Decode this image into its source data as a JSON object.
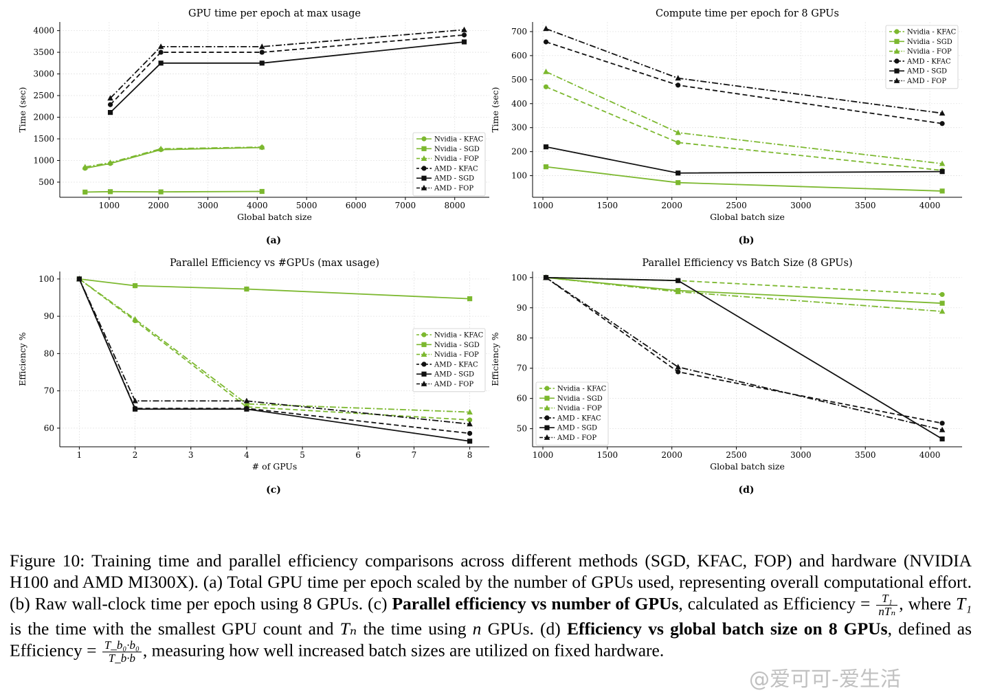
{
  "colors": {
    "nvidia": "#7cb82f",
    "amd": "#111111",
    "grid": "#e3e3e3"
  },
  "chart_data": [
    {
      "id": "a",
      "type": "line",
      "title": "GPU time per epoch at max usage",
      "xlabel": "Global batch size",
      "ylabel": "Time (sec)",
      "sublabel": "(a)",
      "xlim": [
        0,
        8700
      ],
      "ylim": [
        150,
        4200
      ],
      "xticks": [
        1000,
        2000,
        3000,
        4000,
        5000,
        6000,
        7000,
        8000
      ],
      "yticks": [
        500,
        1000,
        1500,
        2000,
        2500,
        3000,
        3500,
        4000
      ],
      "legend_pos": "lower-right",
      "series": [
        {
          "name": "Nvidia - KFAC",
          "color": "nvidia",
          "dash": "solid",
          "marker": "circle",
          "x": [
            512,
            1024,
            2048,
            4096
          ],
          "y": [
            820,
            930,
            1250,
            1300
          ]
        },
        {
          "name": "Nvidia - SGD",
          "color": "nvidia",
          "dash": "solid",
          "marker": "square",
          "x": [
            512,
            1024,
            2048,
            4096
          ],
          "y": [
            270,
            280,
            275,
            285
          ]
        },
        {
          "name": "Nvidia - FOP",
          "color": "nvidia",
          "dash": "dashdot",
          "marker": "triangle",
          "x": [
            512,
            1024,
            2048,
            4096
          ],
          "y": [
            850,
            950,
            1270,
            1310
          ]
        },
        {
          "name": "AMD - KFAC",
          "color": "amd",
          "dash": "dashed",
          "marker": "circle",
          "x": [
            1024,
            2048,
            4096,
            8192
          ],
          "y": [
            2290,
            3500,
            3500,
            3900
          ]
        },
        {
          "name": "AMD - SGD",
          "color": "amd",
          "dash": "solid",
          "marker": "square",
          "x": [
            1024,
            2048,
            4096,
            8192
          ],
          "y": [
            2110,
            3250,
            3250,
            3740
          ]
        },
        {
          "name": "AMD - FOP",
          "color": "amd",
          "dash": "dashdot",
          "marker": "triangle",
          "x": [
            1024,
            2048,
            4096,
            8192
          ],
          "y": [
            2440,
            3630,
            3630,
            4020
          ]
        }
      ]
    },
    {
      "id": "b",
      "type": "line",
      "title": "Compute time per epoch for 8 GPUs",
      "xlabel": "Global batch size",
      "ylabel": "Time (sec)",
      "sublabel": "(b)",
      "xlim": [
        920,
        4250
      ],
      "ylim": [
        10,
        740
      ],
      "xticks": [
        1000,
        1500,
        2000,
        2500,
        3000,
        3500,
        4000
      ],
      "yticks": [
        100,
        200,
        300,
        400,
        500,
        600,
        700
      ],
      "legend_pos": "top-right",
      "series": [
        {
          "name": "Nvidia - KFAC",
          "color": "nvidia",
          "dash": "dashed",
          "marker": "circle",
          "x": [
            1024,
            2048,
            4096
          ],
          "y": [
            470,
            238,
            122
          ]
        },
        {
          "name": "Nvidia - SGD",
          "color": "nvidia",
          "dash": "solid",
          "marker": "square",
          "x": [
            1024,
            2048,
            4096
          ],
          "y": [
            137,
            71,
            36
          ]
        },
        {
          "name": "Nvidia - FOP",
          "color": "nvidia",
          "dash": "dashdot",
          "marker": "triangle",
          "x": [
            1024,
            2048,
            4096
          ],
          "y": [
            533,
            279,
            150
          ]
        },
        {
          "name": "AMD - KFAC",
          "color": "amd",
          "dash": "dashed",
          "marker": "circle",
          "x": [
            1024,
            2048,
            4096
          ],
          "y": [
            657,
            477,
            317
          ]
        },
        {
          "name": "AMD - SGD",
          "color": "amd",
          "dash": "solid",
          "marker": "square",
          "x": [
            1024,
            2048,
            4096
          ],
          "y": [
            220,
            111,
            117
          ]
        },
        {
          "name": "AMD - FOP",
          "color": "amd",
          "dash": "dashdot",
          "marker": "triangle",
          "x": [
            1024,
            2048,
            4096
          ],
          "y": [
            712,
            506,
            360
          ]
        }
      ]
    },
    {
      "id": "c",
      "type": "line",
      "title": "Parallel Efficiency vs #GPUs (max usage)",
      "xlabel": "# of GPUs",
      "ylabel": "Efficiency %",
      "sublabel": "(c)",
      "xlim": [
        0.65,
        8.35
      ],
      "ylim": [
        55,
        102
      ],
      "xticks": [
        1,
        2,
        3,
        4,
        5,
        6,
        7,
        8
      ],
      "yticks": [
        60,
        70,
        80,
        90,
        100
      ],
      "legend_pos": "center-right",
      "series": [
        {
          "name": "Nvidia - KFAC",
          "color": "nvidia",
          "dash": "dashed",
          "marker": "circle",
          "x": [
            1,
            2,
            4,
            8
          ],
          "y": [
            100,
            88.8,
            65.7,
            62.2
          ]
        },
        {
          "name": "Nvidia - SGD",
          "color": "nvidia",
          "dash": "solid",
          "marker": "square",
          "x": [
            1,
            2,
            4,
            8
          ],
          "y": [
            100,
            98.2,
            97.3,
            94.7
          ]
        },
        {
          "name": "Nvidia - FOP",
          "color": "nvidia",
          "dash": "dashdot",
          "marker": "triangle",
          "x": [
            1,
            2,
            4,
            8
          ],
          "y": [
            100,
            89.2,
            66.5,
            64.3
          ]
        },
        {
          "name": "AMD - KFAC",
          "color": "amd",
          "dash": "dashed",
          "marker": "circle",
          "x": [
            1,
            2,
            4,
            8
          ],
          "y": [
            100,
            65.3,
            65.3,
            58.6
          ]
        },
        {
          "name": "AMD - SGD",
          "color": "amd",
          "dash": "solid",
          "marker": "square",
          "x": [
            1,
            2,
            4,
            8
          ],
          "y": [
            100,
            65.1,
            65.1,
            56.5
          ]
        },
        {
          "name": "AMD - FOP",
          "color": "amd",
          "dash": "dashdot",
          "marker": "triangle",
          "x": [
            1,
            2,
            4,
            8
          ],
          "y": [
            100,
            67.3,
            67.3,
            61.1
          ]
        }
      ]
    },
    {
      "id": "d",
      "type": "line",
      "title": "Parallel Efficiency vs Batch Size (8 GPUs)",
      "xlabel": "Global batch size",
      "ylabel": "Efficiency %",
      "sublabel": "(d)",
      "xlim": [
        920,
        4250
      ],
      "ylim": [
        44,
        102
      ],
      "xticks": [
        1000,
        1500,
        2000,
        2500,
        3000,
        3500,
        4000
      ],
      "yticks": [
        50,
        60,
        70,
        80,
        90,
        100
      ],
      "legend_pos": "lower-left",
      "series": [
        {
          "name": "Nvidia - KFAC",
          "color": "nvidia",
          "dash": "dashed",
          "marker": "circle",
          "x": [
            1024,
            2048,
            4096
          ],
          "y": [
            100,
            99,
            94.4
          ]
        },
        {
          "name": "Nvidia - SGD",
          "color": "nvidia",
          "dash": "solid",
          "marker": "square",
          "x": [
            1024,
            2048,
            4096
          ],
          "y": [
            100,
            95.7,
            91.5
          ]
        },
        {
          "name": "Nvidia - FOP",
          "color": "nvidia",
          "dash": "dashdot",
          "marker": "triangle",
          "x": [
            1024,
            2048,
            4096
          ],
          "y": [
            100,
            95.3,
            88.8
          ]
        },
        {
          "name": "AMD - KFAC",
          "color": "amd",
          "dash": "dashed",
          "marker": "circle",
          "x": [
            1024,
            2048,
            4096
          ],
          "y": [
            100,
            68.8,
            51.8
          ]
        },
        {
          "name": "AMD - SGD",
          "color": "amd",
          "dash": "solid",
          "marker": "square",
          "x": [
            1024,
            2048,
            4096
          ],
          "y": [
            100,
            99,
            46.6
          ]
        },
        {
          "name": "AMD - FOP",
          "color": "amd",
          "dash": "dashdot",
          "marker": "triangle",
          "x": [
            1024,
            2048,
            4096
          ],
          "y": [
            100,
            70.4,
            49.6
          ]
        }
      ]
    }
  ],
  "caption": {
    "p1": "Figure 10: Training time and parallel efficiency comparisons across different methods (SGD, KFAC, FOP) and hardware (NVIDIA H100 and AMD MI300X). (a) Total GPU time per epoch scaled by the number of GPUs used, representing overall computational effort. (b) Raw wall-clock time per epoch using 8 GPUs. (c) ",
    "b1": "Parallel efficiency vs number of GPUs",
    "p2": ", calculated as Efficiency = ",
    "f1_num": "T₁",
    "f1_den": "nTₙ",
    "p3": ", where ",
    "m1": "T₁",
    "p4": " is the time with the smallest GPU count and ",
    "m2": "Tₙ",
    "p5": " the time using ",
    "m3": "n",
    "p6": " GPUs. (d) ",
    "b2": "Efficiency vs global batch size on 8 GPUs",
    "p7": ", defined as Efficiency = ",
    "f2_num": "T_b₀·b₀",
    "f2_den": "T_b·b",
    "p8": ", measuring how well increased batch sizes are utilized on fixed hardware."
  },
  "watermark": "@爱可可-爱生活"
}
